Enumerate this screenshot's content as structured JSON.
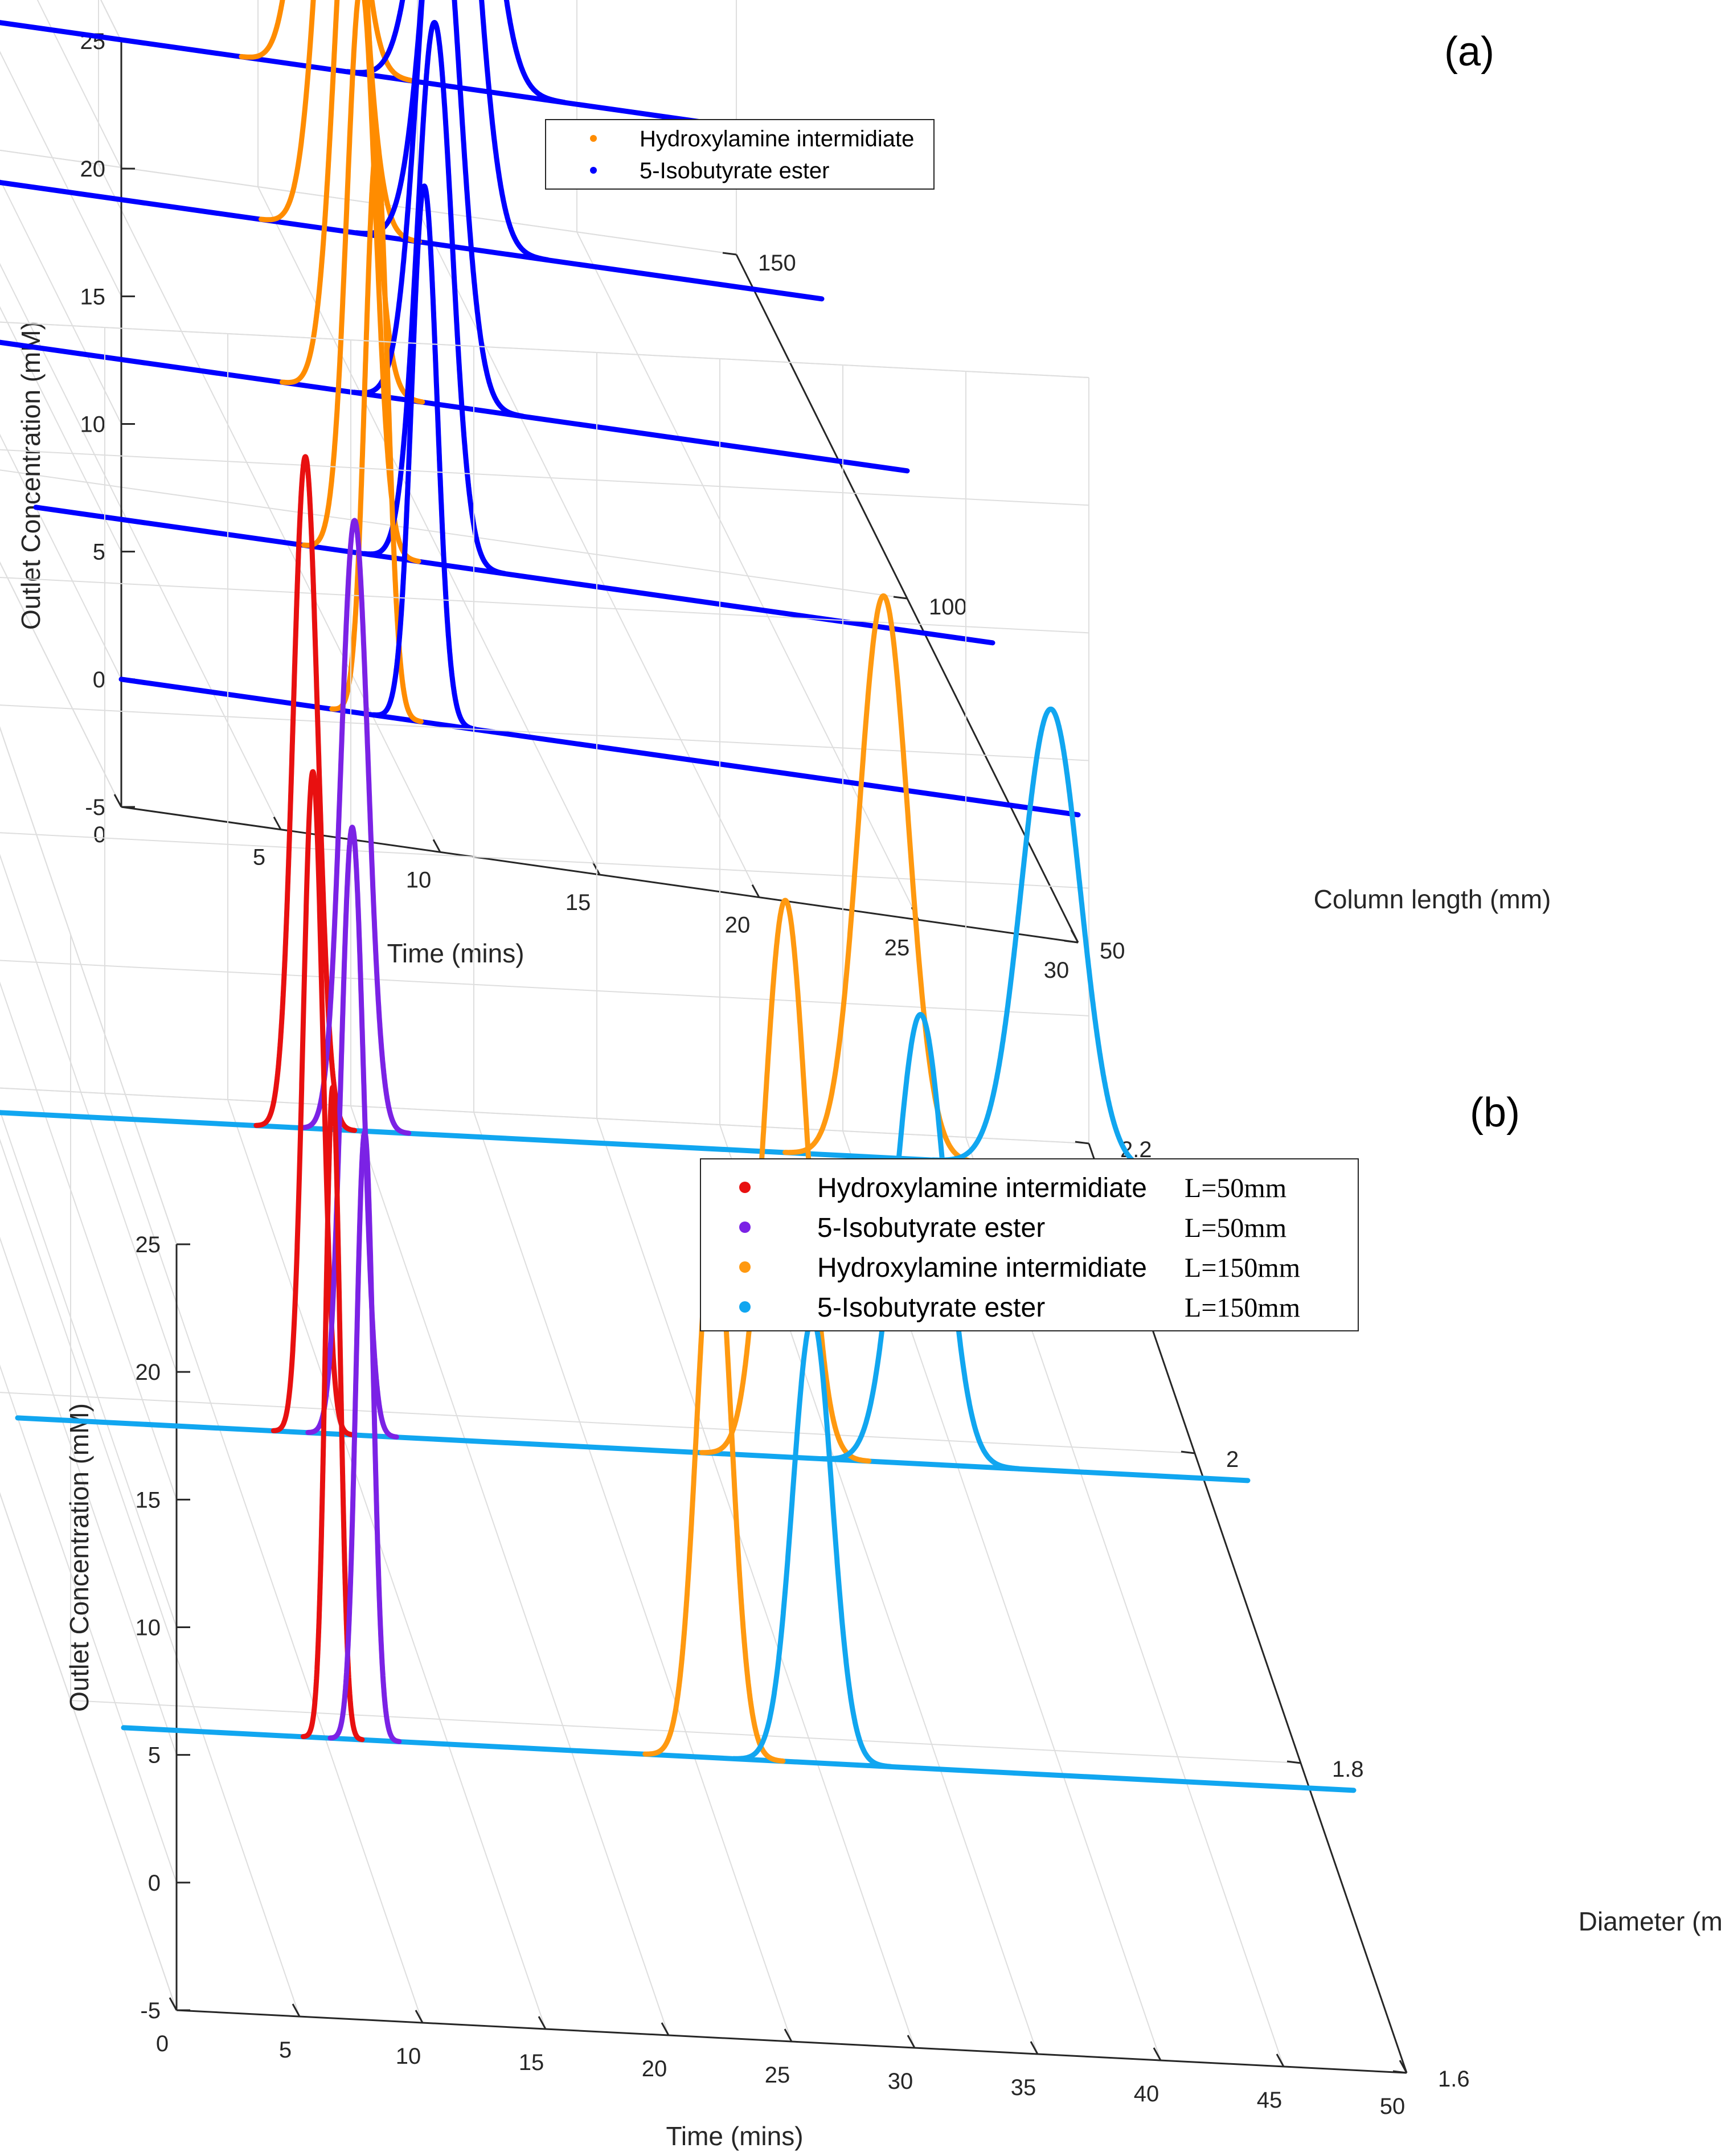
{
  "chart_data": [
    {
      "panel": "(a)",
      "type": "line",
      "style": "3d-waterfall",
      "xlabel": "Time (mins)",
      "ylabel": "Column length (mm)",
      "zlabel": "Outlet Concentration (mM)",
      "xlim": [
        0,
        30
      ],
      "ylim": [
        50,
        150
      ],
      "zlim": [
        -5,
        25
      ],
      "xticks": [
        "0",
        "5",
        "10",
        "15",
        "20",
        "25",
        "30"
      ],
      "yticks": [
        "50",
        "100",
        "150"
      ],
      "zticks": [
        "-5",
        "0",
        "5",
        "10",
        "15",
        "20",
        "25"
      ],
      "legend": [
        {
          "label": "Hydroxylamine intermidiate",
          "color": "#ff8c00"
        },
        {
          "label": "5-Isobutyrate ester",
          "color": "#0000ff"
        }
      ],
      "series": [
        {
          "name": "Hydroxylamine intermidiate",
          "color": "#ff8c00",
          "column_length_mm": [
            50,
            75,
            100,
            125,
            150
          ],
          "peak_time_min": [
            8.0,
            10.2,
            12.6,
            14.9,
            17.2
          ],
          "peak_height_mM": [
            22.2,
            22.3,
            22.3,
            22.5,
            22.5
          ],
          "peak_sigma_min": [
            0.35,
            0.45,
            0.55,
            0.62,
            0.68
          ]
        },
        {
          "name": "5-Isobutyrate ester",
          "color": "#0000ff",
          "column_length_mm": [
            50,
            75,
            100,
            125,
            150
          ],
          "peak_time_min": [
            9.5,
            12.5,
            15.3,
            18.4,
            21.2
          ],
          "peak_height_mM": [
            21.0,
            21.2,
            21.3,
            21.3,
            21.4
          ],
          "peak_sigma_min": [
            0.4,
            0.55,
            0.66,
            0.75,
            0.85
          ]
        }
      ]
    },
    {
      "panel": "(b)",
      "type": "line",
      "style": "3d-waterfall",
      "xlabel": "Time (mins)",
      "ylabel": "Diameter (mm)",
      "zlabel": "Outlet Concentration (mM)",
      "xlim": [
        0,
        50
      ],
      "ylim": [
        1.6,
        2.2
      ],
      "zlim": [
        -5,
        25
      ],
      "xticks": [
        "0",
        "5",
        "10",
        "15",
        "20",
        "25",
        "30",
        "35",
        "40",
        "45",
        "50"
      ],
      "yticks": [
        "1.6",
        "1.8",
        "2",
        "2.2"
      ],
      "zticks": [
        "-5",
        "0",
        "5",
        "10",
        "15",
        "20",
        "25"
      ],
      "legend": [
        {
          "label": "Hydroxylamine intermidiate",
          "suffix": "L=50mm",
          "color": "#e81010"
        },
        {
          "label": "5-Isobutyrate ester",
          "suffix": "L=50mm",
          "color": "#7b22e5"
        },
        {
          "label": "Hydroxylamine intermidiate",
          "suffix": "L=150mm",
          "color": "#ff9910"
        },
        {
          "label": "5-Isobutyrate ester",
          "suffix": "L=150mm",
          "color": "#11a6f0"
        }
      ],
      "series": [
        {
          "name": "Hydroxylamine intermidiate L=50mm",
          "color": "#e81010",
          "diameter_mm": [
            1.7,
            1.9,
            2.1
          ],
          "peak_time_min": [
            8.5,
            12.0,
            16.0
          ],
          "peak_height_mM": [
            25.5,
            25.9,
            26.3
          ],
          "peak_sigma_min": [
            0.3,
            0.4,
            0.5
          ]
        },
        {
          "name": "5-Isobutyrate ester L=50mm",
          "color": "#7b22e5",
          "diameter_mm": [
            1.7,
            1.9,
            2.1
          ],
          "peak_time_min": [
            9.8,
            13.6,
            18.0
          ],
          "peak_height_mM": [
            23.8,
            23.8,
            23.9
          ],
          "peak_sigma_min": [
            0.35,
            0.45,
            0.55
          ]
        },
        {
          "name": "Hydroxylamine intermidiate L=150mm",
          "color": "#ff9910",
          "diameter_mm": [
            1.7,
            1.9,
            2.1
          ],
          "peak_time_min": [
            24.0,
            31.2,
            39.5
          ],
          "peak_height_mM": [
            21.6,
            21.8,
            22.0
          ],
          "peak_sigma_min": [
            0.7,
            0.85,
            1.0
          ]
        },
        {
          "name": "5-Isobutyrate ester L=150mm",
          "color": "#11a6f0",
          "diameter_mm": [
            1.7,
            1.9,
            2.1
          ],
          "peak_time_min": [
            28.0,
            36.7,
            46.3
          ],
          "peak_height_mM": [
            17.4,
            17.6,
            17.9
          ],
          "peak_sigma_min": [
            0.8,
            1.0,
            1.2
          ]
        }
      ]
    }
  ]
}
